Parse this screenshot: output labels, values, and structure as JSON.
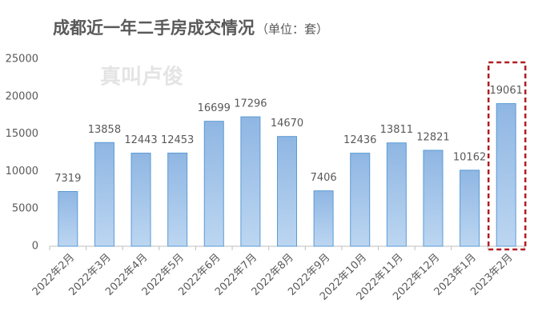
{
  "chart_data": {
    "type": "bar",
    "title": "成都近一年二手房成交情况",
    "subtitle": "（单位：套）",
    "watermark": "真叫卢俊",
    "categories": [
      "2022年2月",
      "2022年3月",
      "2022年4月",
      "2022年5月",
      "2022年6月",
      "2022年7月",
      "2022年8月",
      "2022年9月",
      "2022年10月",
      "2022年11月",
      "2022年12月",
      "2023年1月",
      "2023年2月"
    ],
    "values": [
      7319,
      13858,
      12443,
      12453,
      16699,
      17296,
      14670,
      7406,
      12436,
      13811,
      12821,
      10162,
      19061
    ],
    "color": "#9dc3e6",
    "ylim": [
      0,
      25000
    ],
    "yticks": [
      0,
      5000,
      10000,
      15000,
      20000,
      25000
    ],
    "grid": false
  }
}
